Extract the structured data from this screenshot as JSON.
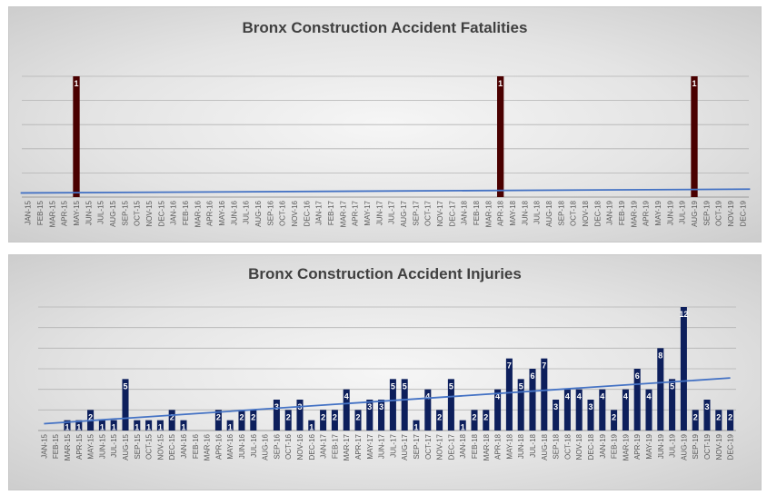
{
  "chart_data": [
    {
      "type": "bar",
      "title": "Bronx Construction Accident Fatalities",
      "xlabel": "",
      "ylabel": "",
      "ylim": [
        0,
        1
      ],
      "grid": true,
      "trendline": true,
      "colors": {
        "bar": "#4a0000",
        "trend": "#4472c4"
      },
      "categories": [
        "JAN-15",
        "FEB-15",
        "MAR-15",
        "APR-15",
        "MAY-15",
        "JUN-15",
        "JUL-15",
        "AUG-15",
        "SEP-15",
        "OCT-15",
        "NOV-15",
        "DEC-15",
        "JAN-16",
        "FEB-16",
        "MAR-16",
        "APR-16",
        "MAY-16",
        "JUN-16",
        "JUL-16",
        "AUG-16",
        "SEP-16",
        "OCT-16",
        "NOV-16",
        "DEC-16",
        "JAN-17",
        "FEB-17",
        "MAR-17",
        "APR-17",
        "MAY-17",
        "JUN-17",
        "JUL-17",
        "AUG-17",
        "SEP-17",
        "OCT-17",
        "NOV-17",
        "DEC-17",
        "JAN-18",
        "FEB-18",
        "MAR-18",
        "APR-18",
        "MAY-18",
        "JUN-18",
        "JUL-18",
        "AUG-18",
        "SEP-18",
        "OCT-18",
        "NOV-18",
        "DEC-18",
        "JAN-19",
        "FEB-19",
        "MAR-19",
        "APR-19",
        "MAY-19",
        "JUN-19",
        "JUL-19",
        "AUG-19",
        "SEP-19",
        "OCT-19",
        "NOV-19",
        "DEC-19"
      ],
      "values": [
        0,
        0,
        0,
        0,
        1,
        0,
        0,
        0,
        0,
        0,
        0,
        0,
        0,
        0,
        0,
        0,
        0,
        0,
        0,
        0,
        0,
        0,
        0,
        0,
        0,
        0,
        0,
        0,
        0,
        0,
        0,
        0,
        0,
        0,
        0,
        0,
        0,
        0,
        0,
        1,
        0,
        0,
        0,
        0,
        0,
        0,
        0,
        0,
        0,
        0,
        0,
        0,
        0,
        0,
        0,
        1,
        0,
        0,
        0,
        0
      ]
    },
    {
      "type": "bar",
      "title": "Bronx Construction Accident Injuries",
      "xlabel": "",
      "ylabel": "",
      "ylim": [
        0,
        12
      ],
      "grid": true,
      "trendline": true,
      "colors": {
        "bar": "#0d1f5c",
        "trend": "#4472c4"
      },
      "categories": [
        "JAN-15",
        "FEB-15",
        "MAR-15",
        "APR-15",
        "MAY-15",
        "JUN-15",
        "JUL-15",
        "AUG-15",
        "SEP-15",
        "OCT-15",
        "NOV-15",
        "DEC-15",
        "JAN-16",
        "FEB-16",
        "MAR-16",
        "APR-16",
        "MAY-16",
        "JUN-16",
        "JUL-16",
        "AUG-16",
        "SEP-16",
        "OCT-16",
        "NOV-16",
        "DEC-16",
        "JAN-17",
        "FEB-17",
        "MAR-17",
        "APR-17",
        "MAY-17",
        "JUN-17",
        "JUL-17",
        "AUG-17",
        "SEP-17",
        "OCT-17",
        "NOV-17",
        "DEC-17",
        "JAN-18",
        "FEB-18",
        "MAR-18",
        "APR-18",
        "MAY-18",
        "JUN-18",
        "JUL-18",
        "AUG-18",
        "SEP-18",
        "OCT-18",
        "NOV-18",
        "DEC-18",
        "JAN-19",
        "FEB-19",
        "MAR-19",
        "APR-19",
        "MAY-19",
        "JUN-19",
        "JUL-19",
        "AUG-19",
        "SEP-19",
        "OCT-19",
        "NOV-19",
        "DEC-19"
      ],
      "values": [
        0,
        0,
        1,
        1,
        2,
        1,
        1,
        5,
        1,
        1,
        1,
        2,
        1,
        0,
        0,
        2,
        1,
        2,
        2,
        0,
        3,
        2,
        3,
        1,
        2,
        2,
        4,
        2,
        3,
        3,
        5,
        5,
        1,
        4,
        2,
        5,
        1,
        2,
        2,
        4,
        7,
        5,
        6,
        7,
        3,
        4,
        4,
        3,
        4,
        2,
        4,
        6,
        4,
        8,
        5,
        12,
        2,
        3,
        2,
        2
      ]
    }
  ]
}
